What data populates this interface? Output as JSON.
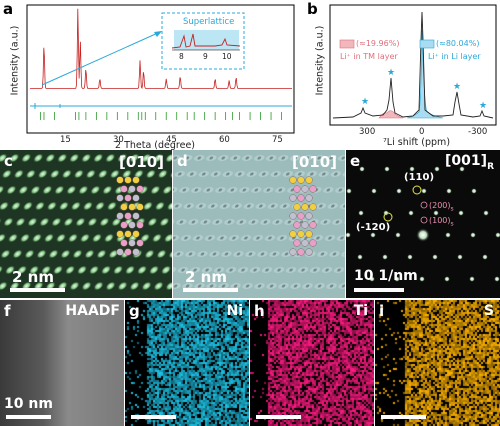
{
  "panel_a": {
    "label": "a",
    "ylabel": "Intensity (a.u.)",
    "xlabel": "2 Theta (degree)",
    "xticks": [
      "15",
      "30",
      "45",
      "60",
      "75"
    ],
    "inset_title": "Superlattice",
    "inset_ticks": [
      "8",
      "9",
      "10"
    ],
    "inset_peaks_deg": [
      8.3,
      8.6,
      9.9
    ]
  },
  "panel_b": {
    "label": "b",
    "ylabel": "Intensity (a.u.)",
    "xlabel": "⁷Li shift (ppm)",
    "xticks": [
      "300",
      "0",
      "-300"
    ],
    "legend": [
      {
        "pct": "(≈19.96%)",
        "text": "Li⁺ in TM layer",
        "color": "#e0707a",
        "fill": "#f2b6bd"
      },
      {
        "pct": "(≈80.04%)",
        "text": "Li⁺ in Li layer",
        "color": "#2aa8d8",
        "fill": "#a9dcf0"
      }
    ]
  },
  "panel_c": {
    "label": "c",
    "zone": "[010]",
    "scale": "2 nm"
  },
  "panel_d": {
    "label": "d",
    "zone": "[010]",
    "scale": "2 nm"
  },
  "panel_e": {
    "label": "e",
    "zone": "[001]",
    "zone_sub": "R",
    "spots": [
      "(110)",
      "(-120)",
      "(200)",
      "(100)"
    ],
    "spot_sub": "s",
    "scale": "10 1/nm"
  },
  "panel_f": {
    "label": "f",
    "title": "HAADF",
    "scale": "10 nm"
  },
  "panel_g": {
    "label": "g",
    "title": "Ni",
    "color": "#1ec3e6"
  },
  "panel_h": {
    "label": "h",
    "title": "Ti",
    "color": "#ff1a82"
  },
  "panel_i": {
    "label": "i",
    "title": "S",
    "color": "#ffb300"
  }
}
